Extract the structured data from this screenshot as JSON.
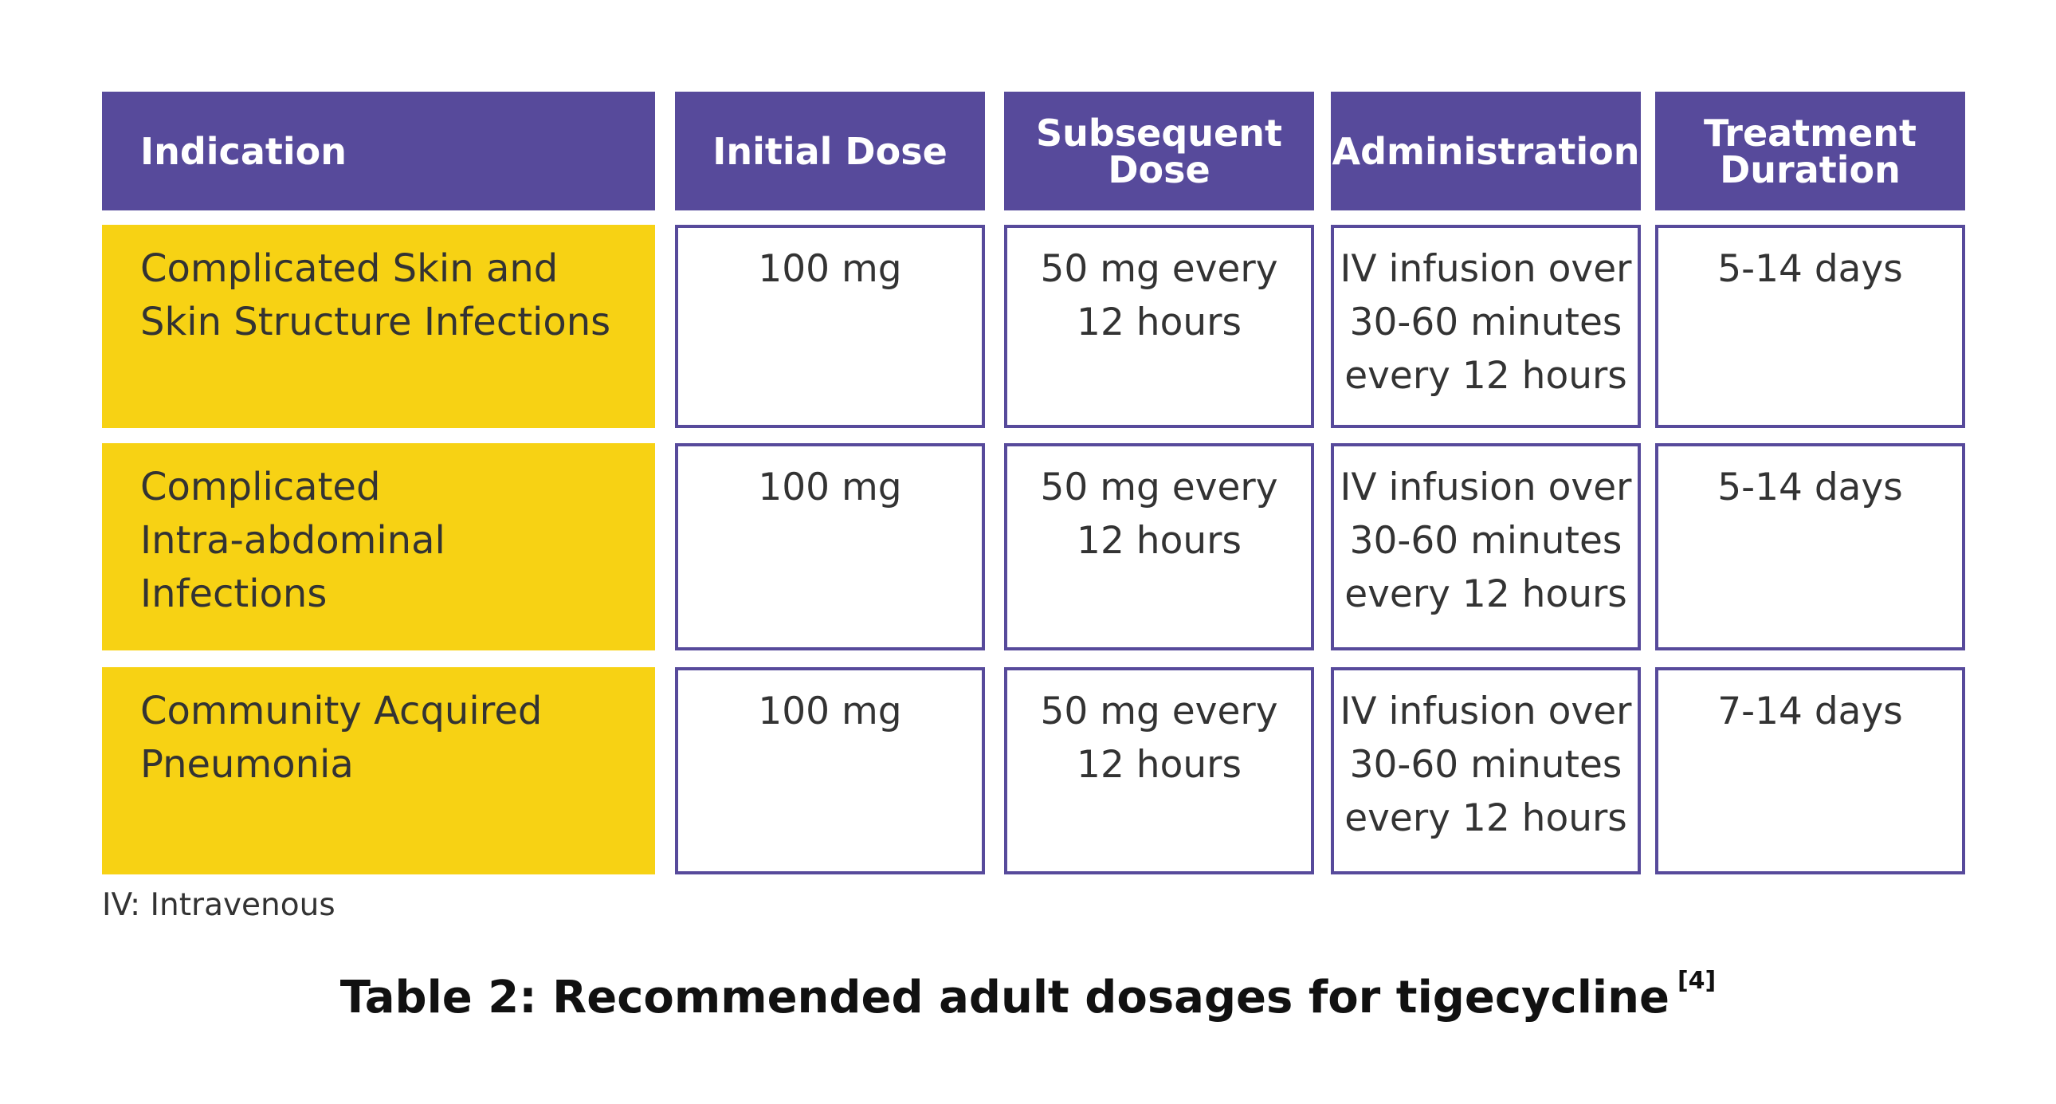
{
  "table": {
    "headers": [
      "Indication",
      "Initial Dose",
      "Subsequent\nDose",
      "Administration",
      "Treatment\nDuration"
    ],
    "rows": [
      {
        "indication": "Complicated Skin and\nSkin Structure Infections",
        "initial_dose": "100 mg",
        "subsequent_dose": "50 mg every\n12 hours",
        "administration": "IV infusion over\n30-60 minutes\nevery 12 hours",
        "duration": "5-14 days"
      },
      {
        "indication": "Complicated\nIntra-abdominal Infections",
        "initial_dose": "100 mg",
        "subsequent_dose": "50 mg every\n12 hours",
        "administration": "IV infusion over\n30-60 minutes\nevery 12 hours",
        "duration": "5-14 days"
      },
      {
        "indication": "Community Acquired\nPneumonia",
        "initial_dose": "100 mg",
        "subsequent_dose": "50 mg every\n12 hours",
        "administration": "IV infusion over\n30-60 minutes\nevery 12 hours",
        "duration": "7-14 days"
      }
    ]
  },
  "footnote": "IV: Intravenous",
  "caption": {
    "text": "Table 2: Recommended adult dosages for tigecycline",
    "reference": "[4]"
  },
  "colors": {
    "header_bg": "#574a9b",
    "indication_bg": "#f7d214",
    "cell_border": "#574a9b"
  }
}
